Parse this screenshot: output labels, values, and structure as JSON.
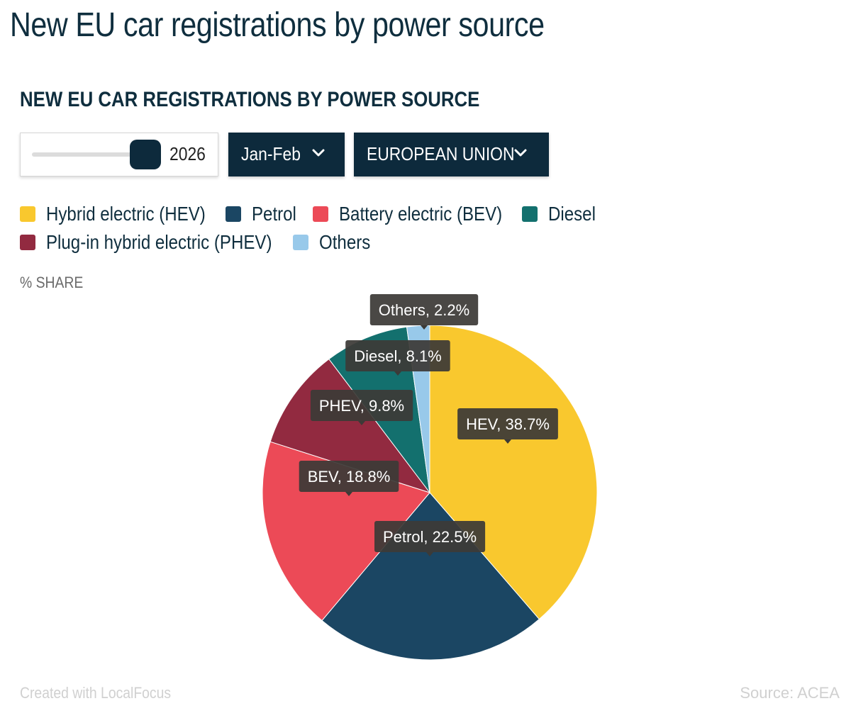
{
  "header": {
    "page_title": "New EU car registrations by power source"
  },
  "controls": {
    "year": "2026",
    "period": "Jan-Feb",
    "region": "EUROPEAN UNION"
  },
  "legend": [
    {
      "label": "Hybrid electric (HEV)",
      "color": "#f9c82e"
    },
    {
      "label": "Petrol",
      "color": "#1b4663"
    },
    {
      "label": "Battery electric (BEV)",
      "color": "#ec4a57"
    },
    {
      "label": "Diesel",
      "color": "#13706e"
    },
    {
      "label": "Plug-in hybrid electric (PHEV)",
      "color": "#922a40"
    },
    {
      "label": "Others",
      "color": "#98c9ea"
    }
  ],
  "chart_data": {
    "type": "pie",
    "title": "NEW EU CAR REGISTRATIONS BY POWER SOURCE",
    "unit_label": "% SHARE",
    "slices": [
      {
        "name": "HEV",
        "value": 38.7,
        "label": "HEV, 38.7%",
        "color": "#f9c82e"
      },
      {
        "name": "Petrol",
        "value": 22.5,
        "label": "Petrol, 22.5%",
        "color": "#1b4663"
      },
      {
        "name": "BEV",
        "value": 18.8,
        "label": "BEV, 18.8%",
        "color": "#ec4a57"
      },
      {
        "name": "PHEV",
        "value": 9.8,
        "label": "PHEV, 9.8%",
        "color": "#922a40"
      },
      {
        "name": "Diesel",
        "value": 8.1,
        "label": "Diesel, 8.1%",
        "color": "#13706e"
      },
      {
        "name": "Others",
        "value": 2.2,
        "label": "Others, 2.2%",
        "color": "#98c9ea"
      }
    ]
  },
  "footer": {
    "credit": "Created with LocalFocus",
    "source": "Source: ACEA"
  }
}
